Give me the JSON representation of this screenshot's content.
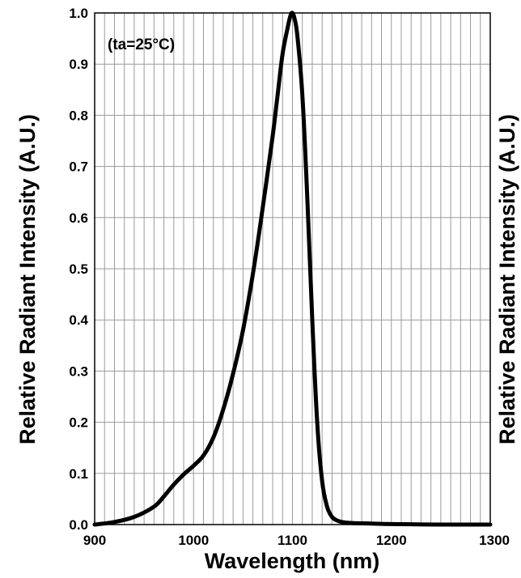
{
  "chart_data": {
    "type": "line",
    "xlabel": "Wavelength (nm)",
    "ylabel": "Relative Radiant Intensity (A.U.)",
    "ylabel_right": "Relative Radiant Intensity (A.U.)",
    "annotation": "(ta=25°C)",
    "xlim": [
      900,
      1300
    ],
    "ylim": [
      0.0,
      1.0
    ],
    "x_ticks": [
      "900",
      "1000",
      "1100",
      "1200",
      "1300"
    ],
    "y_ticks": [
      "0.0",
      "0.1",
      "0.2",
      "0.3",
      "0.4",
      "0.5",
      "0.6",
      "0.7",
      "0.8",
      "0.9",
      "1.0"
    ],
    "x_grid_step": 10,
    "y_grid_step": 0.1,
    "grid": true,
    "line_color": "#000000",
    "series": [
      {
        "x": [
          900,
          920,
          940,
          960,
          970,
          980,
          990,
          1000,
          1010,
          1020,
          1030,
          1040,
          1050,
          1060,
          1070,
          1080,
          1085,
          1090,
          1095,
          1098,
          1100,
          1102,
          1105,
          1110,
          1115,
          1120,
          1125,
          1130,
          1135,
          1140,
          1145,
          1150,
          1160,
          1180,
          1200,
          1250,
          1300
        ],
        "y": [
          0.0,
          0.005,
          0.015,
          0.035,
          0.055,
          0.078,
          0.098,
          0.115,
          0.135,
          0.17,
          0.225,
          0.295,
          0.38,
          0.49,
          0.62,
          0.76,
          0.84,
          0.92,
          0.97,
          0.995,
          1.0,
          0.99,
          0.955,
          0.84,
          0.64,
          0.4,
          0.2,
          0.085,
          0.035,
          0.015,
          0.008,
          0.005,
          0.003,
          0.002,
          0.001,
          0.0,
          0.0
        ]
      }
    ]
  }
}
